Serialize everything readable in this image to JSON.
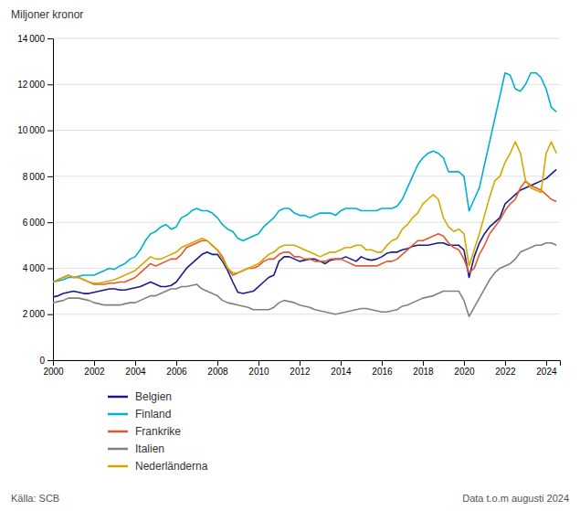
{
  "chart_data": {
    "type": "line",
    "y_label": "Miljoner kronor",
    "annotations": [
      "Källa: SCB",
      "Data t.o.m augusti 2024"
    ],
    "xlim": [
      2000,
      2024.67
    ],
    "ylim": [
      0,
      14000
    ],
    "xticks": [
      2000,
      2002,
      2004,
      2006,
      2008,
      2010,
      2012,
      2014,
      2016,
      2018,
      2020,
      2022,
      2024
    ],
    "yticks": [
      0,
      {
        "value": 2000,
        "label": "2 000"
      },
      {
        "value": 4000,
        "label": "4 000"
      },
      {
        "value": 6000,
        "label": "6 000"
      },
      {
        "value": 8000,
        "label": "8 000"
      },
      {
        "value": 10000,
        "label": "10 000"
      },
      {
        "value": 12000,
        "label": "12 000"
      },
      {
        "value": 14000,
        "label": "14 000"
      }
    ],
    "grid": true,
    "legend": "bottom",
    "x": [
      2000,
      2000.25,
      2000.5,
      2000.75,
      2001,
      2001.25,
      2001.5,
      2001.75,
      2002,
      2002.25,
      2002.5,
      2002.75,
      2003,
      2003.25,
      2003.5,
      2003.75,
      2004,
      2004.25,
      2004.5,
      2004.75,
      2005,
      2005.25,
      2005.5,
      2005.75,
      2006,
      2006.25,
      2006.5,
      2006.75,
      2007,
      2007.25,
      2007.5,
      2007.75,
      2008,
      2008.25,
      2008.5,
      2008.75,
      2009,
      2009.25,
      2009.5,
      2009.75,
      2010,
      2010.25,
      2010.5,
      2010.75,
      2011,
      2011.25,
      2011.5,
      2011.75,
      2012,
      2012.25,
      2012.5,
      2012.75,
      2013,
      2013.25,
      2013.5,
      2013.75,
      2014,
      2014.25,
      2014.5,
      2014.75,
      2015,
      2015.25,
      2015.5,
      2015.75,
      2016,
      2016.25,
      2016.5,
      2016.75,
      2017,
      2017.25,
      2017.5,
      2017.75,
      2018,
      2018.25,
      2018.5,
      2018.75,
      2019,
      2019.25,
      2019.5,
      2019.75,
      2020,
      2020.25,
      2020.5,
      2020.75,
      2021,
      2021.25,
      2021.5,
      2021.75,
      2022,
      2022.25,
      2022.5,
      2022.75,
      2023,
      2023.25,
      2023.5,
      2023.75,
      2024,
      2024.25,
      2024.5
    ],
    "series": [
      {
        "name": "Belgien",
        "color": "#1a1a8c",
        "values": [
          2750,
          2800,
          2900,
          2950,
          3000,
          2950,
          2900,
          2900,
          2950,
          3000,
          3050,
          3100,
          3100,
          3050,
          3050,
          3100,
          3150,
          3200,
          3300,
          3400,
          3300,
          3200,
          3200,
          3250,
          3400,
          3700,
          4000,
          4200,
          4400,
          4600,
          4700,
          4600,
          4600,
          4300,
          3900,
          3400,
          2950,
          2900,
          2950,
          3000,
          3200,
          3400,
          3600,
          3700,
          4300,
          4500,
          4500,
          4400,
          4300,
          4350,
          4400,
          4400,
          4300,
          4200,
          4350,
          4400,
          4400,
          4500,
          4400,
          4300,
          4500,
          4400,
          4350,
          4400,
          4500,
          4650,
          4700,
          4700,
          4800,
          4850,
          4950,
          5000,
          5000,
          5000,
          5050,
          5100,
          5100,
          5000,
          5000,
          5000,
          4800,
          3600,
          4500,
          5100,
          5500,
          5800,
          6000,
          6200,
          6800,
          7000,
          7200,
          7400,
          7500,
          7600,
          7700,
          7800,
          7900,
          8100,
          8300
        ]
      },
      {
        "name": "Finland",
        "color": "#00b0d0",
        "values": [
          3400,
          3450,
          3500,
          3600,
          3600,
          3650,
          3700,
          3700,
          3700,
          3800,
          3900,
          4000,
          3950,
          4100,
          4200,
          4400,
          4500,
          4800,
          5200,
          5500,
          5600,
          5800,
          5900,
          5700,
          5800,
          6200,
          6300,
          6500,
          6600,
          6500,
          6500,
          6400,
          6200,
          5900,
          5700,
          5600,
          5300,
          5200,
          5300,
          5400,
          5500,
          5800,
          6000,
          6200,
          6500,
          6600,
          6600,
          6400,
          6300,
          6300,
          6200,
          6300,
          6400,
          6400,
          6400,
          6300,
          6500,
          6600,
          6600,
          6600,
          6500,
          6500,
          6500,
          6500,
          6600,
          6600,
          6600,
          6700,
          7000,
          7500,
          8000,
          8500,
          8800,
          9000,
          9100,
          9000,
          8800,
          8200,
          8200,
          8200,
          8000,
          6500,
          7000,
          7500,
          8500,
          9500,
          10500,
          11500,
          12500,
          12400,
          11800,
          11700,
          12000,
          12500,
          12500,
          12300,
          11800,
          11000,
          10800
        ]
      },
      {
        "name": "Frankrike",
        "color": "#e05a30",
        "values": [
          3400,
          3500,
          3600,
          3700,
          3600,
          3600,
          3500,
          3400,
          3300,
          3300,
          3300,
          3350,
          3350,
          3400,
          3400,
          3500,
          3600,
          3800,
          4000,
          4200,
          4100,
          4200,
          4300,
          4400,
          4400,
          4600,
          4900,
          5000,
          5100,
          5200,
          5200,
          5000,
          4800,
          4500,
          4000,
          3700,
          3800,
          3900,
          4000,
          4000,
          4100,
          4300,
          4400,
          4400,
          4600,
          4700,
          4700,
          4500,
          4500,
          4400,
          4400,
          4300,
          4300,
          4300,
          4400,
          4400,
          4400,
          4300,
          4200,
          4100,
          4100,
          4100,
          4100,
          4100,
          4200,
          4300,
          4300,
          4400,
          4600,
          4800,
          5000,
          5200,
          5200,
          5300,
          5400,
          5500,
          5400,
          5100,
          4900,
          4800,
          4400,
          3800,
          4000,
          4600,
          5000,
          5500,
          5800,
          6100,
          6500,
          6800,
          7000,
          7500,
          7800,
          7600,
          7500,
          7400,
          7200,
          7000,
          6900
        ]
      },
      {
        "name": "Italien",
        "color": "#808080",
        "values": [
          2500,
          2550,
          2600,
          2700,
          2700,
          2700,
          2650,
          2600,
          2500,
          2450,
          2400,
          2400,
          2400,
          2400,
          2450,
          2500,
          2500,
          2600,
          2700,
          2800,
          2800,
          2900,
          3000,
          3100,
          3100,
          3200,
          3200,
          3250,
          3300,
          3100,
          3000,
          2900,
          2800,
          2600,
          2500,
          2450,
          2400,
          2350,
          2300,
          2200,
          2200,
          2200,
          2200,
          2300,
          2500,
          2600,
          2550,
          2500,
          2400,
          2350,
          2300,
          2200,
          2150,
          2100,
          2050,
          2000,
          2050,
          2100,
          2150,
          2200,
          2250,
          2250,
          2200,
          2150,
          2100,
          2100,
          2150,
          2200,
          2350,
          2400,
          2500,
          2600,
          2700,
          2750,
          2800,
          2900,
          3000,
          3000,
          3000,
          3000,
          2600,
          1900,
          2300,
          2700,
          3100,
          3500,
          3800,
          4000,
          4100,
          4200,
          4400,
          4700,
          4800,
          4900,
          5000,
          5000,
          5100,
          5100,
          5000
        ]
      },
      {
        "name": "Nederländerna",
        "color": "#d4a800",
        "values": [
          3400,
          3500,
          3600,
          3700,
          3600,
          3600,
          3500,
          3400,
          3350,
          3350,
          3400,
          3450,
          3500,
          3600,
          3700,
          3800,
          3900,
          4100,
          4300,
          4500,
          4400,
          4400,
          4500,
          4600,
          4700,
          4900,
          5000,
          5100,
          5200,
          5300,
          5200,
          5000,
          4800,
          4400,
          4000,
          3800,
          3800,
          3900,
          4000,
          4100,
          4200,
          4400,
          4600,
          4700,
          4900,
          5000,
          5000,
          5000,
          4900,
          4800,
          4700,
          4600,
          4500,
          4600,
          4700,
          4700,
          4800,
          4900,
          4900,
          5000,
          5000,
          4800,
          4800,
          4700,
          4700,
          5000,
          5200,
          5300,
          5700,
          5900,
          6200,
          6400,
          6800,
          7000,
          7200,
          7000,
          6200,
          5800,
          5600,
          5700,
          5500,
          4100,
          4800,
          5500,
          6300,
          7100,
          7800,
          8000,
          8600,
          9000,
          9500,
          9000,
          7800,
          7500,
          7400,
          7300,
          9000,
          9500,
          9000
        ]
      }
    ]
  }
}
